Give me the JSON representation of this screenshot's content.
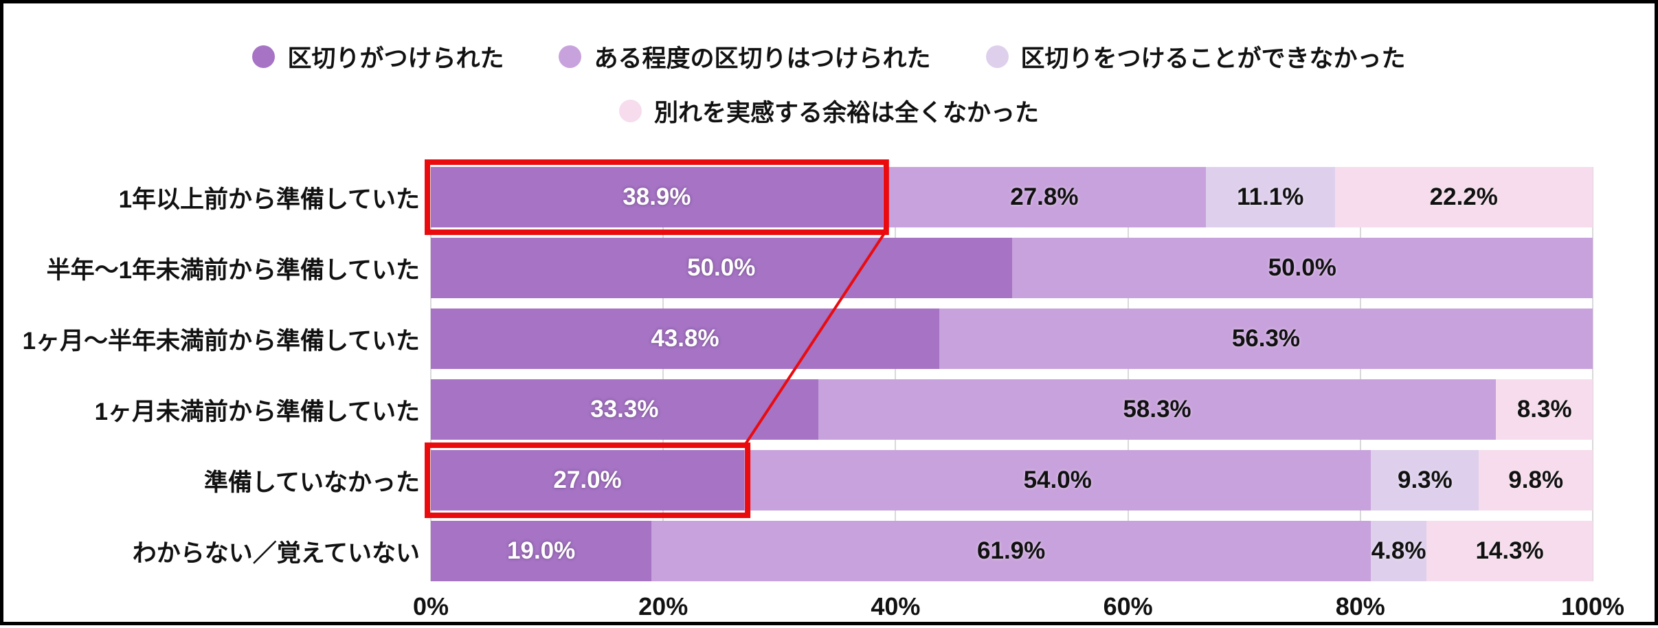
{
  "frame": {
    "background": "#ffffff",
    "border_color": "#000000"
  },
  "chart_data": {
    "type": "bar",
    "orientation": "horizontal",
    "stacked": true,
    "title": "",
    "xlabel": "",
    "ylabel": "",
    "xlim": [
      0,
      100
    ],
    "x_ticks": [
      "0%",
      "20%",
      "40%",
      "60%",
      "80%",
      "100%"
    ],
    "grid": true,
    "gridline_color": "#d9d9d9",
    "legend_position": "top",
    "legend_rows": [
      [
        0,
        1,
        2
      ],
      [
        3
      ]
    ],
    "value_suffix": "%",
    "categories": [
      "1年以上前から準備していた",
      "半年〜1年未満前から準備していた",
      "1ヶ月〜半年未満前から準備していた",
      "1ヶ月未満前から準備していた",
      "準備していなかった",
      "わからない／覚えていない"
    ],
    "series": [
      {
        "name": "区切りがつけられた",
        "color": "#a673c5",
        "label_color": "#ffffff",
        "label_contrast": "on-dark",
        "values": [
          38.9,
          50.0,
          43.8,
          33.3,
          27.0,
          19.0
        ]
      },
      {
        "name": "ある程度の区切りはつけられた",
        "color": "#c8a2dc",
        "label_color": "#111111",
        "label_contrast": "on-light",
        "values": [
          27.8,
          50.0,
          56.3,
          58.3,
          54.0,
          61.9
        ]
      },
      {
        "name": "区切りをつけることができなかった",
        "color": "#ded0ec",
        "label_color": "#111111",
        "label_contrast": "on-light",
        "values": [
          11.1,
          0,
          0,
          0,
          9.3,
          4.8
        ]
      },
      {
        "name": "別れを実感する余裕は全くなかった",
        "color": "#f6dcec",
        "label_color": "#111111",
        "label_contrast": "on-light",
        "values": [
          22.2,
          0,
          0,
          8.3,
          9.8,
          14.3
        ]
      }
    ],
    "annotations": {
      "highlight_color": "#ea0b0e",
      "highlight_box_stroke": 8,
      "connector_stroke": 4,
      "highlighted_segments": [
        {
          "row": 0,
          "series": 0,
          "value": 38.9
        },
        {
          "row": 4,
          "series": 0,
          "value": 27.0
        }
      ],
      "connector": {
        "from_row": 0,
        "to_row": 4,
        "series": 0
      }
    }
  }
}
